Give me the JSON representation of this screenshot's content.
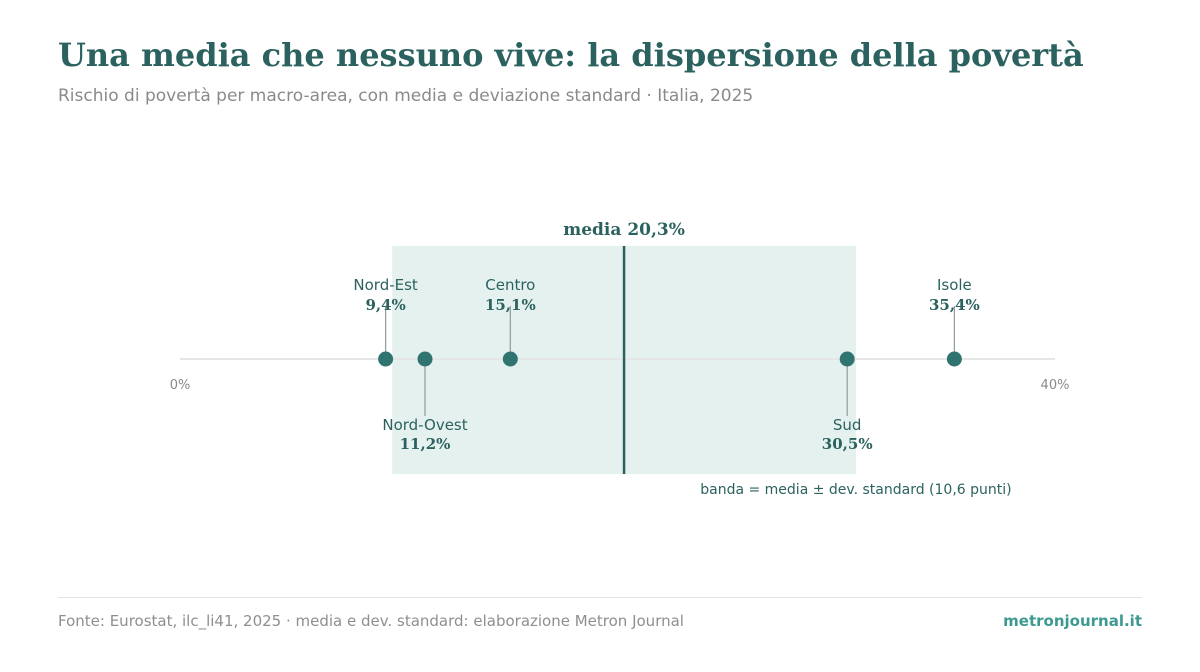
{
  "header": {
    "title": "Una media che nessuno vive: la dispersione della povertà",
    "subtitle": "Rischio di povertà per macro-area, con media e deviazione standard · Italia, 2025"
  },
  "footer": {
    "source": "Fonte: Eurostat, ilc_li41, 2025 · media e dev. standard: elaborazione Metron Journal",
    "brand": "metronjournal.it"
  },
  "colors": {
    "primary": "#2b625f",
    "dot": "#2f7470",
    "band": "#e4f1ef",
    "axis": "#e6e6e6",
    "muted": "#8a8a8a",
    "leader": "#8f9b99"
  },
  "chart_data": {
    "type": "dot-strip",
    "xlim": [
      0,
      40
    ],
    "tick_labels": [
      "0%",
      "40%"
    ],
    "mean": 20.3,
    "mean_label": "media 20,3%",
    "std": 10.6,
    "band_label": "banda = media ± dev. standard (10,6 punti)",
    "points": [
      {
        "name": "Nord-Est",
        "value": 9.4,
        "label": "9,4%",
        "position": "above"
      },
      {
        "name": "Nord-Ovest",
        "value": 11.2,
        "label": "11,2%",
        "position": "below"
      },
      {
        "name": "Centro",
        "value": 15.1,
        "label": "15,1%",
        "position": "above"
      },
      {
        "name": "Sud",
        "value": 30.5,
        "label": "30,5%",
        "position": "below"
      },
      {
        "name": "Isole",
        "value": 35.4,
        "label": "35,4%",
        "position": "above"
      }
    ]
  }
}
